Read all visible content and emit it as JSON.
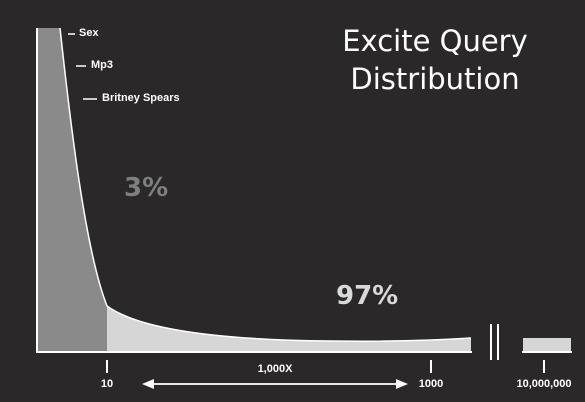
{
  "chart_data": {
    "type": "area",
    "title": "Excite Query Distribution",
    "title_lines": [
      "Excite Query",
      "Distribution"
    ],
    "head_labels": [
      "Sex",
      "Mp3",
      "Britney Spears"
    ],
    "regions": [
      {
        "label": "3%",
        "share": 3,
        "color": "#7f7f7f"
      },
      {
        "label": "97%",
        "share": 97,
        "color": "#d9d9d9"
      }
    ],
    "x_ticks": [
      "10",
      "1000",
      "10,000,000"
    ],
    "range_label": "1,000X",
    "axis_break": true,
    "colors": {
      "background": "#2b2829",
      "head": "#8a8a8a",
      "tail": "#d6d6d6",
      "axis": "#ffffff"
    }
  }
}
